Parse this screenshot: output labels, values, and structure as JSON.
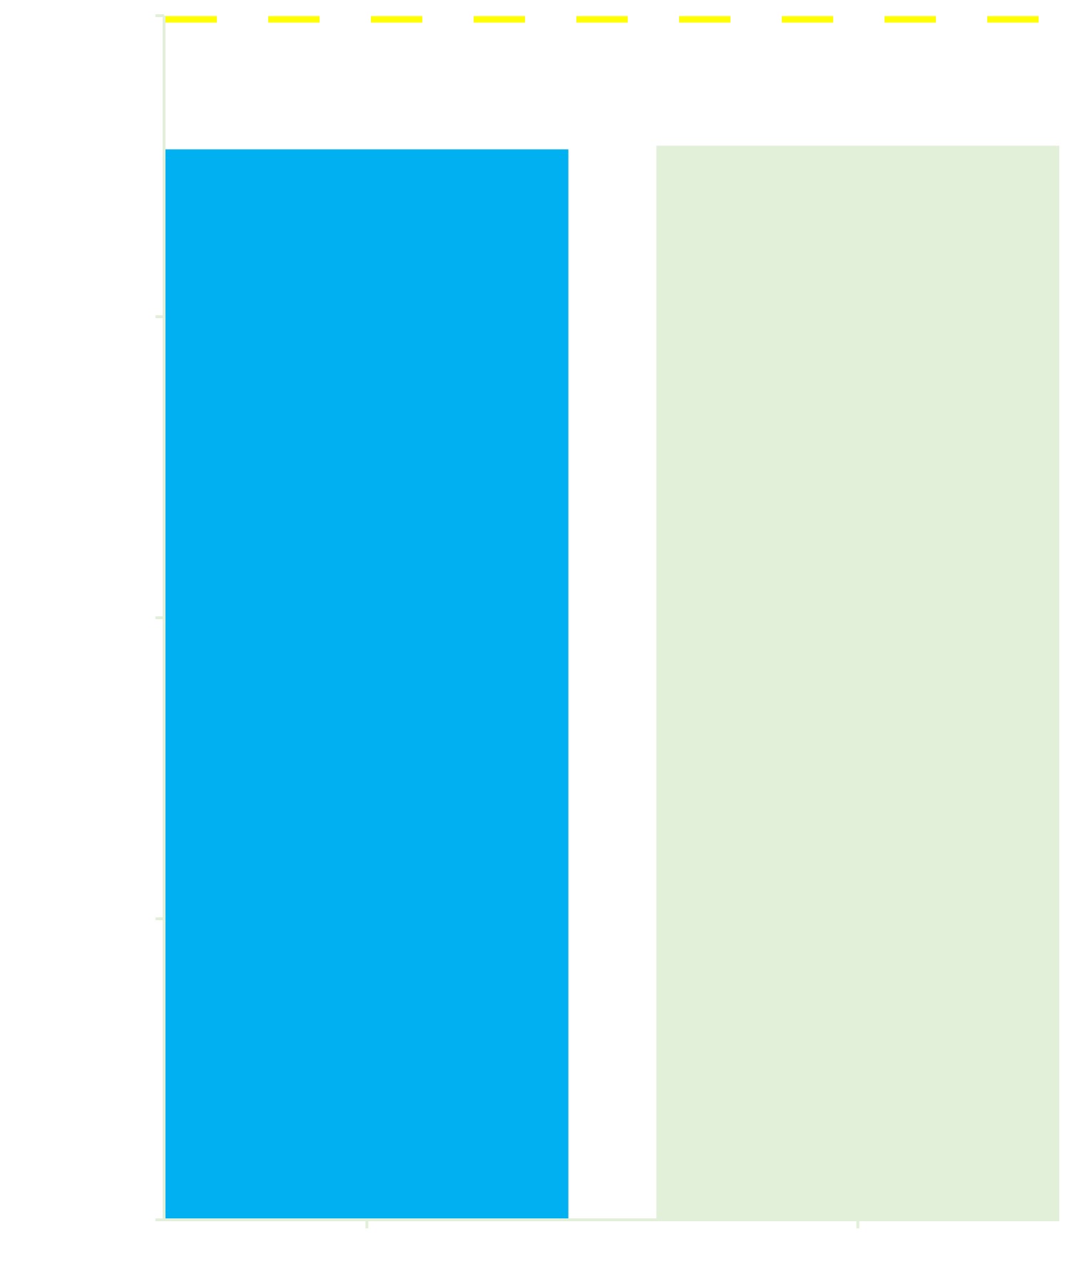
{
  "chart_data": {
    "type": "bar",
    "title": "",
    "xlabel": "",
    "ylabel": "",
    "categories": [
      "",
      ""
    ],
    "values": [
      0.889,
      0.892
    ],
    "ylim": [
      0,
      1
    ],
    "yticks": [
      0,
      0.25,
      0.5,
      0.75,
      1.0
    ],
    "reference_line": {
      "y": 0.997,
      "style": "dashed"
    },
    "grid": false,
    "legend": "none",
    "colors": {
      "bars": [
        "#00b0f0",
        "#e2efd9"
      ],
      "reference_line": "#ffff00",
      "axis": "#e2efd9",
      "background": "#ffffff"
    }
  }
}
